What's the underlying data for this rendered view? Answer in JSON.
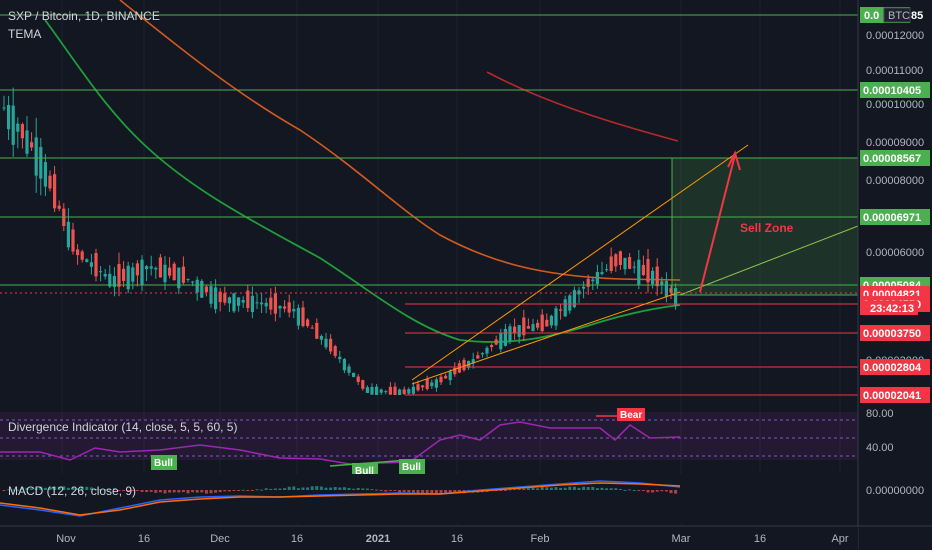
{
  "header": {
    "symbol_line": "SXP / Bitcoin, 1D, BINANCE",
    "indicator": "TEMA"
  },
  "currency_badge": "BTC",
  "top_price_partial": "0.0",
  "top_price_tail": "85",
  "price_axis_ticks": [
    "0.00012000",
    "0.00011000",
    "0.00010000",
    "0.00009000",
    "0.00008000",
    "0.00006000",
    "0.00003000"
  ],
  "level_labels": [
    {
      "label": "0.00010405",
      "color": "#4caf50"
    },
    {
      "label": "0.00008567",
      "color": "#4caf50"
    },
    {
      "label": "0.00006971",
      "color": "#4caf50"
    },
    {
      "label": "0.00005084",
      "color": "#4caf50"
    },
    {
      "label": "0.00004821",
      "color": "#f23645"
    },
    {
      "label": "0.00004550",
      "color": "#f23645"
    },
    {
      "label": "0.00003750",
      "color": "#f23645"
    },
    {
      "label": "0.00002804",
      "color": "#f23645"
    },
    {
      "label": "0.00002041",
      "color": "#f23645"
    }
  ],
  "countdown": "23:42:13",
  "sell_zone_label": "Sell Zone",
  "divergence": {
    "title": "Divergence Indicator (14, close, 5, 5, 60, 5)",
    "axis_ticks": [
      "80.00",
      "40.00"
    ],
    "bull_labels": [
      "Bull",
      "Bull",
      "Bull"
    ],
    "bear_label": "Bear"
  },
  "macd": {
    "title": "MACD (12, 26, close, 9)",
    "axis_tick": "0.00000000"
  },
  "time_axis": [
    "Nov",
    "16",
    "Dec",
    "16",
    "2021",
    "16",
    "Feb",
    "Mar",
    "16",
    "Apr"
  ],
  "colors": {
    "background": "#131722",
    "up": "#26a69a",
    "down": "#ef5350",
    "ma_green": "#1e9e3a",
    "ma_orange": "#d35a1e",
    "ma_red": "#b52a2a",
    "support_green": "#4caf50",
    "support_red": "#f23645",
    "divergence_line": "#9c27b0",
    "macd_line": "#2962ff",
    "macd_signal": "#ff6d00"
  },
  "chart_data": {
    "type": "line",
    "title": "SXP / Bitcoin, 1D, BINANCE",
    "approx_price_path": [
      {
        "x": "2020-10-19",
        "y": 9.9e-05
      },
      {
        "x": "2020-10-26",
        "y": 8.6e-05
      },
      {
        "x": "2020-11-02",
        "y": 6e-05
      },
      {
        "x": "2020-11-09",
        "y": 5.2e-05
      },
      {
        "x": "2020-11-16",
        "y": 5.6e-05
      },
      {
        "x": "2020-11-23",
        "y": 5.3e-05
      },
      {
        "x": "2020-11-30",
        "y": 4.7e-05
      },
      {
        "x": "2020-12-07",
        "y": 4.6e-05
      },
      {
        "x": "2020-12-14",
        "y": 4.4e-05
      },
      {
        "x": "2020-12-21",
        "y": 3.4e-05
      },
      {
        "x": "2020-12-28",
        "y": 2.2e-05
      },
      {
        "x": "2021-01-04",
        "y": 2.1e-05
      },
      {
        "x": "2021-01-11",
        "y": 2.4e-05
      },
      {
        "x": "2021-01-18",
        "y": 3e-05
      },
      {
        "x": "2021-01-25",
        "y": 3.8e-05
      },
      {
        "x": "2021-02-01",
        "y": 4e-05
      },
      {
        "x": "2021-02-08",
        "y": 5e-05
      },
      {
        "x": "2021-02-15",
        "y": 5.8e-05
      },
      {
        "x": "2021-02-22",
        "y": 5.3e-05
      },
      {
        "x": "2021-02-26",
        "y": 4.8e-05
      }
    ],
    "horizontal_levels": [
      0.00010405,
      8.567e-05,
      6.971e-05,
      5.084e-05,
      4.821e-05,
      4.55e-05,
      3.75e-05,
      2.804e-05,
      2.041e-05
    ],
    "sell_zone_range": [
      4.821e-05,
      8.567e-05
    ],
    "oscillator_range": [
      40,
      80
    ]
  }
}
